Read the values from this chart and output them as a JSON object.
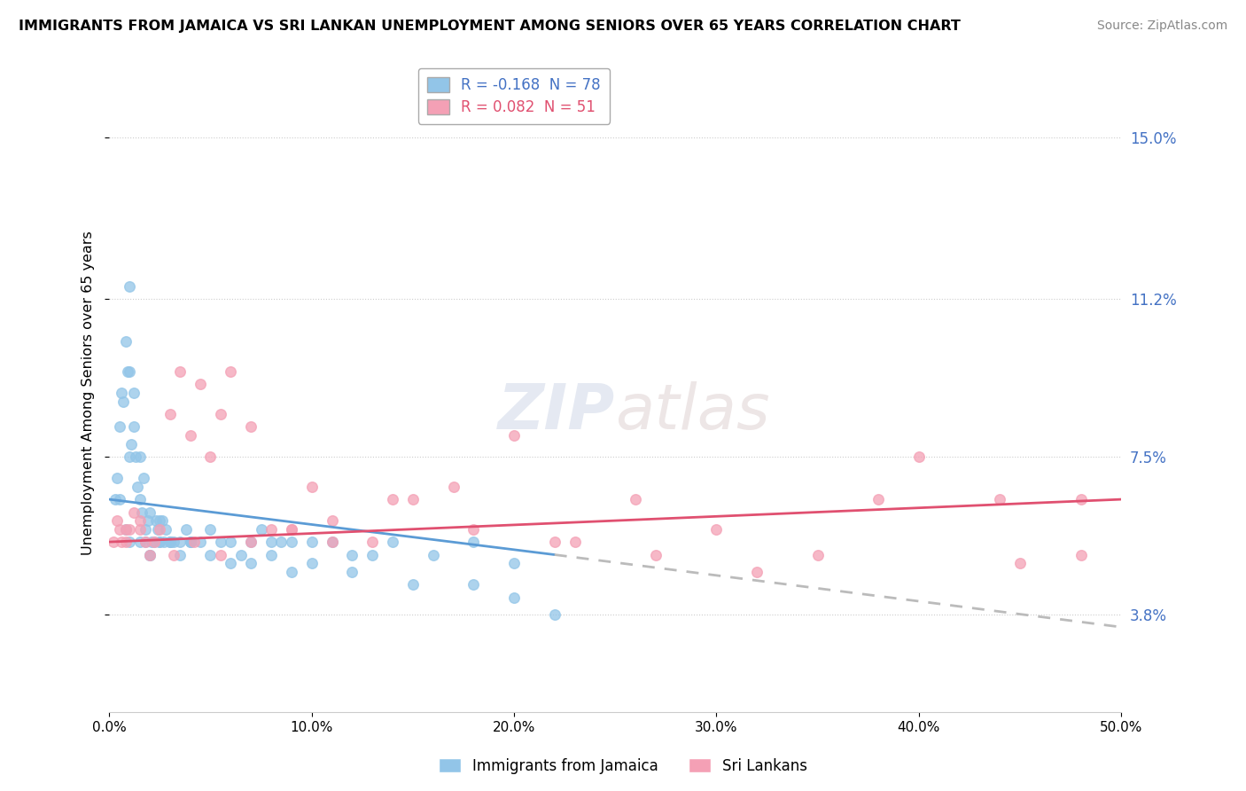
{
  "title": "IMMIGRANTS FROM JAMAICA VS SRI LANKAN UNEMPLOYMENT AMONG SENIORS OVER 65 YEARS CORRELATION CHART",
  "source": "Source: ZipAtlas.com",
  "ylabel": "Unemployment Among Seniors over 65 years",
  "x_min": 0.0,
  "x_max": 50.0,
  "y_min": 1.5,
  "y_max": 16.5,
  "y_ticks": [
    3.8,
    7.5,
    11.2,
    15.0
  ],
  "y_tick_labels": [
    "3.8%",
    "7.5%",
    "11.2%",
    "15.0%"
  ],
  "x_ticks": [
    0.0,
    10.0,
    20.0,
    30.0,
    40.0,
    50.0
  ],
  "x_tick_labels": [
    "0.0%",
    "10.0%",
    "20.0%",
    "30.0%",
    "40.0%",
    "50.0%"
  ],
  "color_jamaica": "#92C5E8",
  "color_srilanka": "#F4A0B5",
  "color_jamaica_line": "#5B9BD5",
  "color_srilanka_line": "#E05070",
  "color_dashed": "#BBBBBB",
  "legend_label_jamaica": "Immigrants from Jamaica",
  "legend_label_srilanka": "Sri Lankans",
  "R_jamaica": -0.168,
  "N_jamaica": 78,
  "R_srilanka": 0.082,
  "N_srilanka": 51,
  "watermark_part1": "ZIP",
  "watermark_part2": "atlas",
  "jamaica_x": [
    0.3,
    0.4,
    0.5,
    0.6,
    0.7,
    0.8,
    0.9,
    1.0,
    1.0,
    1.1,
    1.2,
    1.3,
    1.4,
    1.5,
    1.6,
    1.7,
    1.8,
    1.9,
    2.0,
    2.1,
    2.2,
    2.3,
    2.4,
    2.5,
    2.6,
    2.7,
    2.8,
    3.0,
    3.2,
    3.5,
    3.8,
    4.0,
    4.5,
    5.0,
    5.5,
    6.0,
    6.5,
    7.0,
    7.5,
    8.0,
    8.5,
    9.0,
    10.0,
    11.0,
    12.0,
    13.0,
    14.0,
    16.0,
    18.0,
    20.0,
    0.5,
    0.8,
    1.0,
    1.2,
    1.5,
    1.8,
    2.0,
    2.5,
    3.0,
    3.5,
    4.0,
    5.0,
    6.0,
    7.0,
    8.0,
    9.0,
    10.0,
    12.0,
    15.0,
    18.0,
    20.0,
    22.0,
    1.0,
    1.5,
    2.0,
    2.5,
    3.0,
    4.0
  ],
  "jamaica_y": [
    6.5,
    7.0,
    8.2,
    9.0,
    8.8,
    10.2,
    9.5,
    11.5,
    7.5,
    7.8,
    8.2,
    7.5,
    6.8,
    6.5,
    6.2,
    7.0,
    5.8,
    6.0,
    6.2,
    5.5,
    5.5,
    6.0,
    5.8,
    6.0,
    6.0,
    5.5,
    5.8,
    5.5,
    5.5,
    5.2,
    5.8,
    5.5,
    5.5,
    5.8,
    5.5,
    5.5,
    5.2,
    5.5,
    5.8,
    5.5,
    5.5,
    5.5,
    5.5,
    5.5,
    5.2,
    5.2,
    5.5,
    5.2,
    5.5,
    5.0,
    6.5,
    5.8,
    9.5,
    9.0,
    7.5,
    5.5,
    5.2,
    5.5,
    5.5,
    5.5,
    5.5,
    5.2,
    5.0,
    5.0,
    5.2,
    4.8,
    5.0,
    4.8,
    4.5,
    4.5,
    4.2,
    3.8,
    5.5,
    5.5,
    5.2,
    5.5,
    5.5,
    5.5
  ],
  "srilanka_x": [
    0.2,
    0.4,
    0.6,
    0.8,
    1.0,
    1.2,
    1.5,
    1.8,
    2.0,
    2.5,
    3.0,
    3.5,
    4.0,
    4.5,
    5.0,
    5.5,
    6.0,
    7.0,
    8.0,
    9.0,
    10.0,
    11.0,
    13.0,
    15.0,
    17.0,
    20.0,
    23.0,
    26.0,
    30.0,
    35.0,
    40.0,
    45.0,
    48.0,
    0.5,
    0.8,
    1.5,
    2.2,
    3.2,
    4.2,
    5.5,
    7.0,
    9.0,
    11.0,
    14.0,
    18.0,
    22.0,
    27.0,
    32.0,
    38.0,
    44.0,
    48.0
  ],
  "srilanka_y": [
    5.5,
    6.0,
    5.5,
    5.8,
    5.8,
    6.2,
    6.0,
    5.5,
    5.2,
    5.8,
    8.5,
    9.5,
    8.0,
    9.2,
    7.5,
    8.5,
    9.5,
    8.2,
    5.8,
    5.8,
    6.8,
    5.5,
    5.5,
    6.5,
    6.8,
    8.0,
    5.5,
    6.5,
    5.8,
    5.2,
    7.5,
    5.0,
    5.2,
    5.8,
    5.5,
    5.8,
    5.5,
    5.2,
    5.5,
    5.2,
    5.5,
    5.8,
    6.0,
    6.5,
    5.8,
    5.5,
    5.2,
    4.8,
    6.5,
    6.5,
    6.5
  ],
  "jamaica_line_x0": 0.0,
  "jamaica_line_y0": 6.5,
  "jamaica_line_x1": 22.0,
  "jamaica_line_y1": 5.2,
  "jamaica_dashed_x0": 22.0,
  "jamaica_dashed_y0": 5.2,
  "jamaica_dashed_x1": 50.0,
  "jamaica_dashed_y1": 3.5,
  "srilanka_line_x0": 0.0,
  "srilanka_line_y0": 5.5,
  "srilanka_line_x1": 50.0,
  "srilanka_line_y1": 6.5
}
